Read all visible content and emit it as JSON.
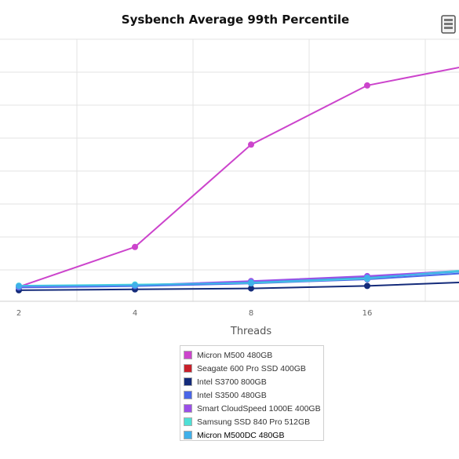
{
  "chart_data": {
    "type": "line",
    "title": "Sysbench Average 99th Percentile",
    "xlabel": "Threads",
    "ylabel": "",
    "x": [
      2,
      4,
      8,
      16,
      32
    ],
    "x_tick_labels": [
      "2",
      "4",
      "8",
      "16",
      ""
    ],
    "ylim": [
      0,
      100
    ],
    "grid": true,
    "legend_position": "bottom",
    "series": [
      {
        "name": "Micron M500 480GB",
        "color": "#cc44cc",
        "values": [
          0.5,
          18,
          63,
          89,
          99
        ]
      },
      {
        "name": "Seagate 600 Pro SSD 400GB",
        "color": "#c8202a",
        "values": [
          0.5,
          1.0,
          2.6,
          4.8,
          8.0
        ]
      },
      {
        "name": "Intel S3700 800GB",
        "color": "#142b7a",
        "values": [
          -1.0,
          -0.6,
          -0.2,
          0.9,
          2.8
        ]
      },
      {
        "name": "Intel S3500 480GB",
        "color": "#4a66e8",
        "values": [
          0.2,
          0.8,
          2.0,
          3.8,
          7.0
        ]
      },
      {
        "name": "Smart CloudSpeed 1000E 400GB",
        "color": "#9b4fe8",
        "values": [
          0.6,
          1.2,
          3.0,
          5.2,
          8.2
        ]
      },
      {
        "name": "Samsung SSD 840 Pro 512GB",
        "color": "#4ee0d6",
        "values": [
          1.0,
          1.5,
          2.2,
          4.2,
          8.5
        ]
      },
      {
        "name": "Micron M500DC 480GB",
        "color": "#40b0ea",
        "values": [
          0.8,
          1.2,
          2.4,
          4.5,
          7.8
        ]
      }
    ]
  }
}
